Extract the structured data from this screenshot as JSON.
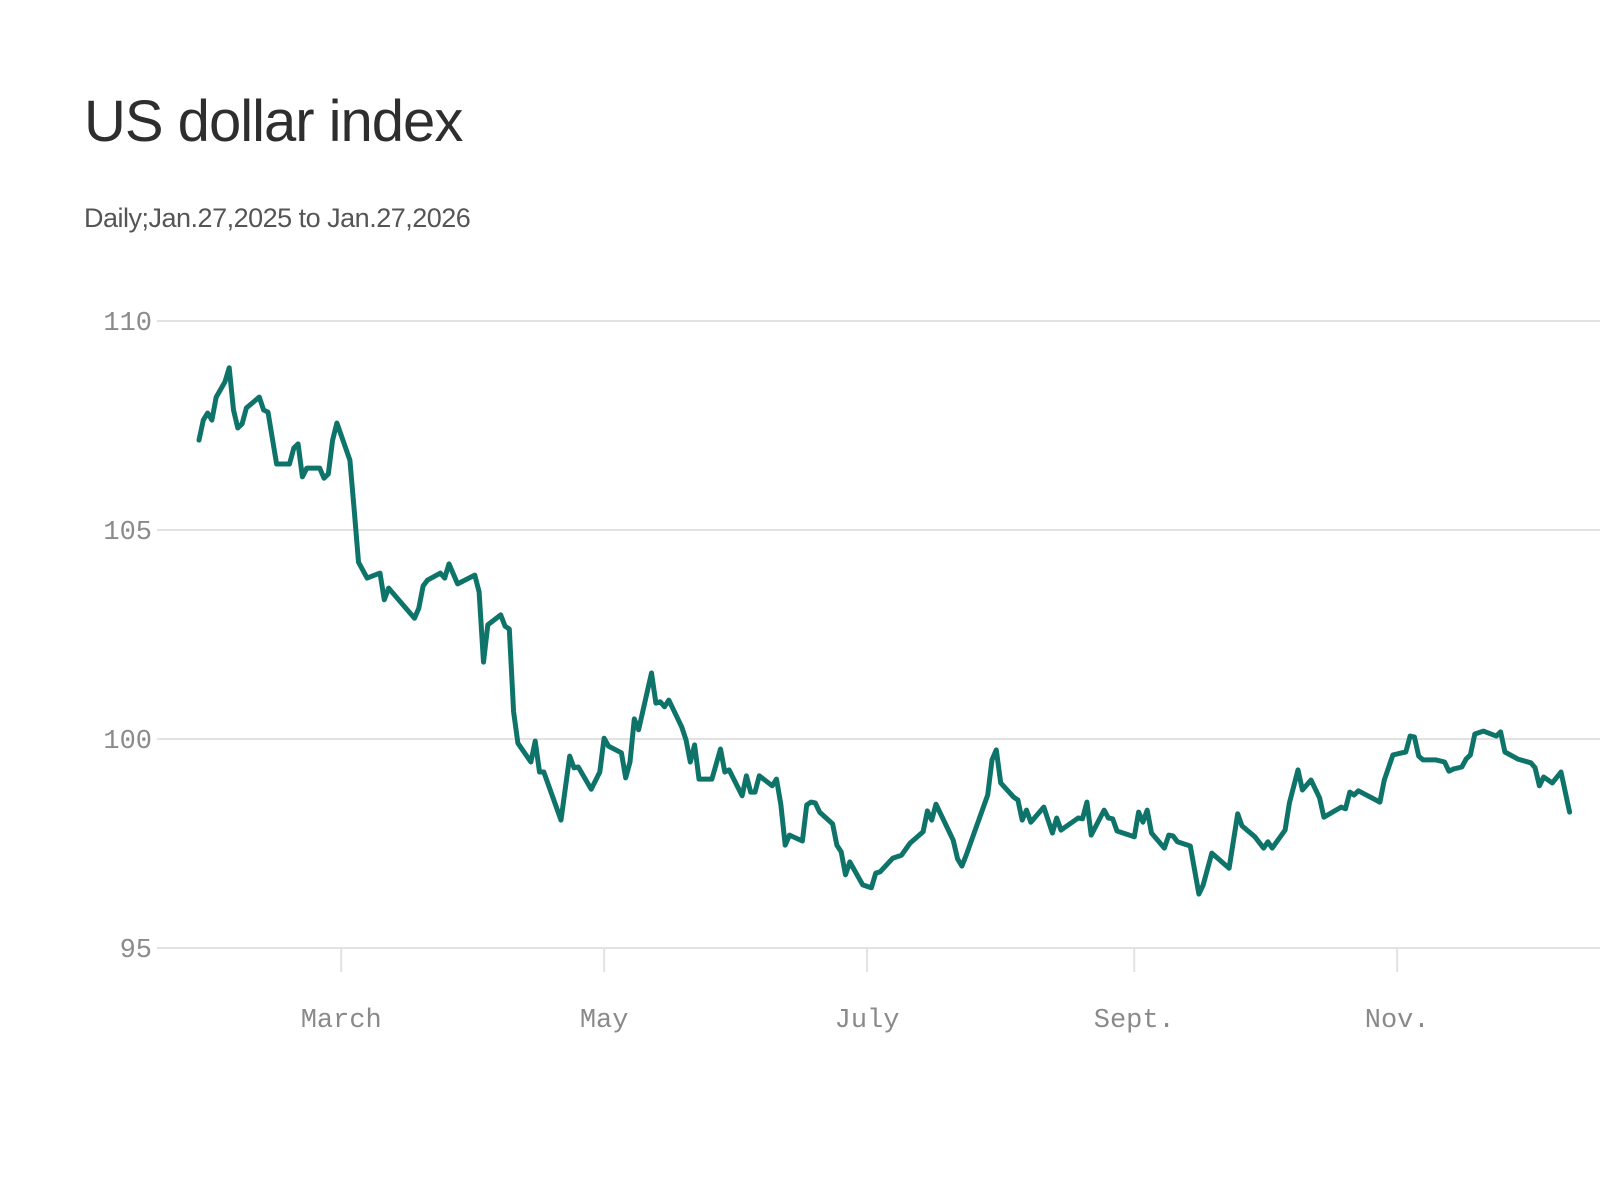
{
  "title": "US dollar index",
  "subtitle": "Daily;Jan.27,2025 to Jan.27,2026",
  "colors": {
    "line": "#0e746a",
    "grid": "#e2e2e2",
    "tick_text": "#8a8a8a"
  },
  "chart_data": {
    "type": "line",
    "title": "US dollar index",
    "subtitle": "Daily;Jan.27,2025 to Jan.27,2026",
    "xlabel": "",
    "ylabel": "",
    "xlim": [
      "2025-01-27",
      "2026-01-27"
    ],
    "ylim": [
      95,
      110
    ],
    "grid": true,
    "y_ticks": [
      110,
      105,
      100,
      95
    ],
    "x_ticks": [
      {
        "date": "2025-03-01",
        "label": "March"
      },
      {
        "date": "2025-05-01",
        "label": "May"
      },
      {
        "date": "2025-07-01",
        "label": "July"
      },
      {
        "date": "2025-09-01",
        "label": "Sept."
      },
      {
        "date": "2025-11-01",
        "label": "Nov."
      }
    ],
    "series": [
      {
        "x": [
          "2025-01-27",
          "2025-01-28",
          "2025-01-29",
          "2025-01-30",
          "2025-01-31",
          "2025-02-02",
          "2025-02-03",
          "2025-02-04",
          "2025-02-05",
          "2025-02-06",
          "2025-02-07",
          "2025-02-10",
          "2025-02-11",
          "2025-02-12",
          "2025-02-14",
          "2025-02-17",
          "2025-02-18",
          "2025-02-19",
          "2025-02-20",
          "2025-02-21",
          "2025-02-24",
          "2025-02-25",
          "2025-02-26",
          "2025-02-27",
          "2025-02-28",
          "2025-03-03",
          "2025-03-04",
          "2025-03-05",
          "2025-03-07",
          "2025-03-10",
          "2025-03-11",
          "2025-03-12",
          "2025-03-18",
          "2025-03-19",
          "2025-03-20",
          "2025-03-21",
          "2025-03-24",
          "2025-03-25",
          "2025-03-26",
          "2025-03-28",
          "2025-04-01",
          "2025-04-02",
          "2025-04-03",
          "2025-04-04",
          "2025-04-07",
          "2025-04-08",
          "2025-04-09",
          "2025-04-10",
          "2025-04-11",
          "2025-04-14",
          "2025-04-15",
          "2025-04-16",
          "2025-04-17",
          "2025-04-21",
          "2025-04-23",
          "2025-04-24",
          "2025-04-25",
          "2025-04-28",
          "2025-04-30",
          "2025-05-01",
          "2025-05-02",
          "2025-05-05",
          "2025-05-06",
          "2025-05-07",
          "2025-05-08",
          "2025-05-09",
          "2025-05-12",
          "2025-05-13",
          "2025-05-14",
          "2025-05-15",
          "2025-05-16",
          "2025-05-19",
          "2025-05-20",
          "2025-05-21",
          "2025-05-22",
          "2025-05-23",
          "2025-05-26",
          "2025-05-28",
          "2025-05-29",
          "2025-05-30",
          "2025-06-02",
          "2025-06-03",
          "2025-06-04",
          "2025-06-05",
          "2025-06-06",
          "2025-06-09",
          "2025-06-10",
          "2025-06-11",
          "2025-06-12",
          "2025-06-13",
          "2025-06-16",
          "2025-06-17",
          "2025-06-18",
          "2025-06-19",
          "2025-06-20",
          "2025-06-23",
          "2025-06-24",
          "2025-06-25",
          "2025-06-26",
          "2025-06-27",
          "2025-06-30",
          "2025-07-02",
          "2025-07-03",
          "2025-07-04",
          "2025-07-07",
          "2025-07-09",
          "2025-07-11",
          "2025-07-14",
          "2025-07-15",
          "2025-07-16",
          "2025-07-17",
          "2025-07-21",
          "2025-07-22",
          "2025-07-23",
          "2025-07-24",
          "2025-07-29",
          "2025-07-30",
          "2025-07-31",
          "2025-08-01",
          "2025-08-04",
          "2025-08-05",
          "2025-08-06",
          "2025-08-07",
          "2025-08-08",
          "2025-08-11",
          "2025-08-13",
          "2025-08-14",
          "2025-08-15",
          "2025-08-19",
          "2025-08-20",
          "2025-08-21",
          "2025-08-22",
          "2025-08-25",
          "2025-08-26",
          "2025-08-27",
          "2025-08-28",
          "2025-09-01",
          "2025-09-02",
          "2025-09-03",
          "2025-09-04",
          "2025-09-05",
          "2025-09-08",
          "2025-09-09",
          "2025-09-10",
          "2025-09-11",
          "2025-09-14",
          "2025-09-16",
          "2025-09-17",
          "2025-09-19",
          "2025-09-23",
          "2025-09-25",
          "2025-09-26",
          "2025-09-29",
          "2025-10-01",
          "2025-10-02",
          "2025-10-03",
          "2025-10-06",
          "2025-10-07",
          "2025-10-09",
          "2025-10-10",
          "2025-10-12",
          "2025-10-14",
          "2025-10-15",
          "2025-10-19",
          "2025-10-20",
          "2025-10-21",
          "2025-10-22",
          "2025-10-23",
          "2025-10-28",
          "2025-10-29",
          "2025-10-31",
          "2025-11-03",
          "2025-11-04",
          "2025-11-05",
          "2025-11-06",
          "2025-11-07",
          "2025-11-10",
          "2025-11-12",
          "2025-11-13",
          "2025-11-14",
          "2025-11-16",
          "2025-11-17",
          "2025-11-18",
          "2025-11-19",
          "2025-11-21",
          "2025-11-24",
          "2025-11-25",
          "2025-11-26",
          "2025-11-29",
          "2025-12-02",
          "2025-12-03",
          "2025-12-04",
          "2025-12-05",
          "2025-12-07",
          "2025-12-09",
          "2025-12-11"
        ],
        "y": [
          107.15,
          107.63,
          107.8,
          107.63,
          108.18,
          108.54,
          108.88,
          107.87,
          107.44,
          107.54,
          107.92,
          108.18,
          107.87,
          107.82,
          106.58,
          106.58,
          106.96,
          107.06,
          106.27,
          106.48,
          106.48,
          106.24,
          106.34,
          107.15,
          107.56,
          106.67,
          105.48,
          104.23,
          103.85,
          103.97,
          103.33,
          103.61,
          102.89,
          103.13,
          103.66,
          103.8,
          103.97,
          103.85,
          104.19,
          103.71,
          103.92,
          103.52,
          101.84,
          102.73,
          102.97,
          102.7,
          102.63,
          100.65,
          99.9,
          99.45,
          99.95,
          99.21,
          99.21,
          98.06,
          99.59,
          99.31,
          99.33,
          98.8,
          99.21,
          100.02,
          99.83,
          99.67,
          99.07,
          99.45,
          100.48,
          100.22,
          101.58,
          100.86,
          100.89,
          100.77,
          100.93,
          100.29,
          99.98,
          99.45,
          99.86,
          99.04,
          99.04,
          99.76,
          99.21,
          99.26,
          98.64,
          99.12,
          98.73,
          98.73,
          99.12,
          98.88,
          99.04,
          98.44,
          97.46,
          97.7,
          97.56,
          98.42,
          98.49,
          98.47,
          98.25,
          97.97,
          97.46,
          97.3,
          96.75,
          97.06,
          96.51,
          96.44,
          96.79,
          96.82,
          97.15,
          97.22,
          97.51,
          97.78,
          98.28,
          98.06,
          98.44,
          97.58,
          97.13,
          96.96,
          97.22,
          98.66,
          99.5,
          99.74,
          98.95,
          98.61,
          98.54,
          98.06,
          98.3,
          98.01,
          98.37,
          97.75,
          98.11,
          97.82,
          98.11,
          98.09,
          98.49,
          97.7,
          98.3,
          98.11,
          98.09,
          97.8,
          97.66,
          98.25,
          98.01,
          98.3,
          97.75,
          97.39,
          97.7,
          97.68,
          97.54,
          97.44,
          96.29,
          96.51,
          97.27,
          96.91,
          98.21,
          97.92,
          97.66,
          97.39,
          97.54,
          97.39,
          97.82,
          98.47,
          99.26,
          98.78,
          99.02,
          98.59,
          98.13,
          98.37,
          98.33,
          98.73,
          98.66,
          98.76,
          98.49,
          99.02,
          99.62,
          99.69,
          100.07,
          100.05,
          99.59,
          99.5,
          99.5,
          99.45,
          99.23,
          99.28,
          99.33,
          99.52,
          99.62,
          100.12,
          100.19,
          100.07,
          100.17,
          99.69,
          99.52,
          99.43,
          99.31,
          98.88,
          99.09,
          98.95,
          99.21,
          98.25
        ]
      }
    ]
  }
}
